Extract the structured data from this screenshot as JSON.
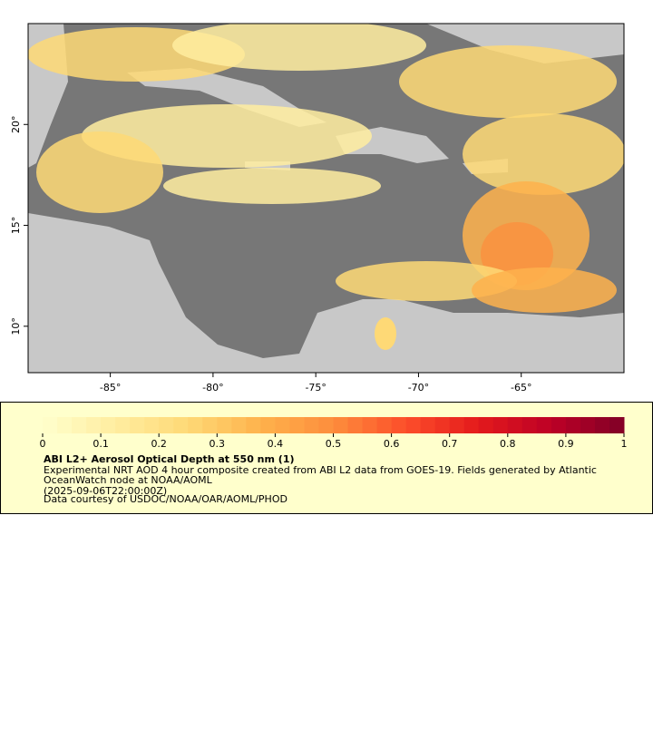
{
  "map": {
    "xlim": [
      -89,
      -60
    ],
    "ylim": [
      7.7,
      25
    ],
    "xticks": [
      {
        "value": -85,
        "label": "-85°"
      },
      {
        "value": -80,
        "label": "-80°"
      },
      {
        "value": -75,
        "label": "-75°"
      },
      {
        "value": -70,
        "label": "-70°"
      },
      {
        "value": -65,
        "label": "-65°"
      }
    ],
    "yticks": [
      {
        "value": 10,
        "label": "10°"
      },
      {
        "value": 15,
        "label": "15°"
      },
      {
        "value": 20,
        "label": "20°"
      }
    ]
  },
  "legend": {
    "range": [
      0,
      1
    ],
    "ticks": [
      0,
      0.1,
      0.2,
      0.3,
      0.4,
      0.5,
      0.6,
      0.7,
      0.8,
      0.9,
      1
    ],
    "colors": [
      "#ffffcc",
      "#ffeda0",
      "#fed976",
      "#feb24c",
      "#fd8d3c",
      "#fc4e2a",
      "#e31a1c",
      "#bd0026",
      "#800026"
    ],
    "title": "ABI L2+ Aerosol Optical Depth at 550 nm (1)",
    "lines": [
      "Experimental NRT AOD 4 hour composite created from ABI L2 data from GOES-19. Fields generated by Atlantic",
      "OceanWatch node at NOAA/AOML",
      "(2025-09-06T22:00:00Z)",
      "Data courtesy of USDOC/NOAA/OAR/AOML/PHOD"
    ]
  }
}
